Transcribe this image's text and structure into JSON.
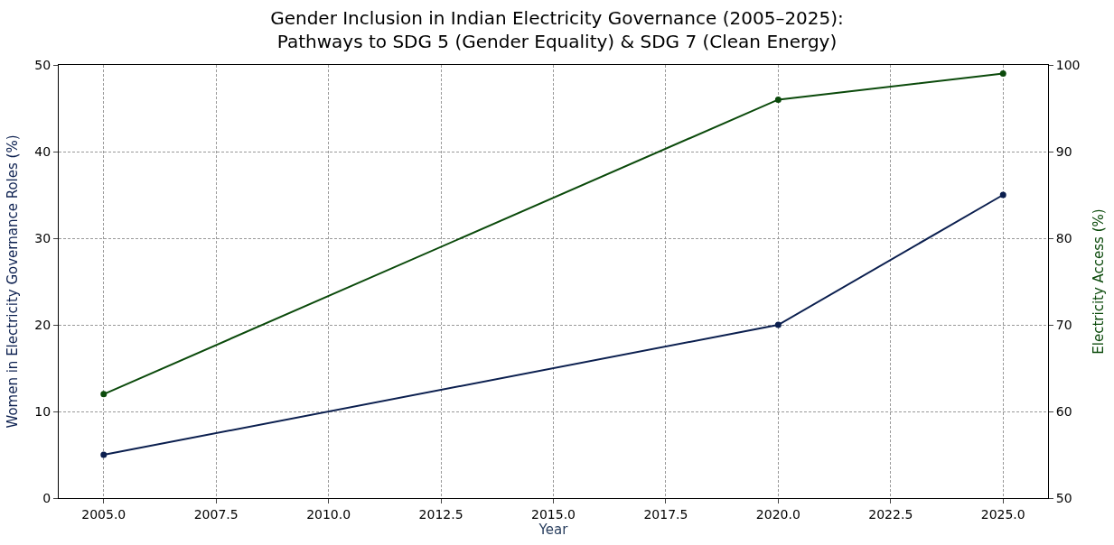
{
  "chart_data": {
    "type": "line",
    "title": "Gender Inclusion in Indian Electricity Governance (2005–2025):\nPathways to SDG 5 (Gender Equality) & SDG 7 (Clean Energy)",
    "xlabel": "Year",
    "ylabel": "Women in Electricity Governance Roles (%)",
    "y2label": "Electricity Access (%)",
    "x": [
      2005,
      2020,
      2025
    ],
    "series": [
      {
        "color": "#0b1f4f",
        "values": [
          5,
          20,
          35
        ]
      },
      {
        "color": "#0b4a0b",
        "values": [
          62,
          96,
          99
        ],
        "axis": "y2"
      }
    ],
    "xlim": [
      2004,
      2026
    ],
    "xticks": [
      {
        "value": 2005,
        "label": "2005.0"
      },
      {
        "value": 2007.5,
        "label": "2007.5"
      },
      {
        "value": 2010,
        "label": "2010.0"
      },
      {
        "value": 2012.5,
        "label": "2012.5"
      },
      {
        "value": 2015,
        "label": "2015.0"
      },
      {
        "value": 2017.5,
        "label": "2017.5"
      },
      {
        "value": 2020,
        "label": "2020.0"
      },
      {
        "value": 2022.5,
        "label": "2022.5"
      },
      {
        "value": 2025,
        "label": "2025.0"
      }
    ],
    "ylim": [
      0,
      50
    ],
    "yticks": [
      0,
      10,
      20,
      30,
      40,
      50
    ],
    "y2lim": [
      50,
      100
    ],
    "y2ticks": [
      50,
      60,
      70,
      80,
      90,
      100
    ],
    "grid": true,
    "marker": "circle",
    "line_style": "solid"
  }
}
